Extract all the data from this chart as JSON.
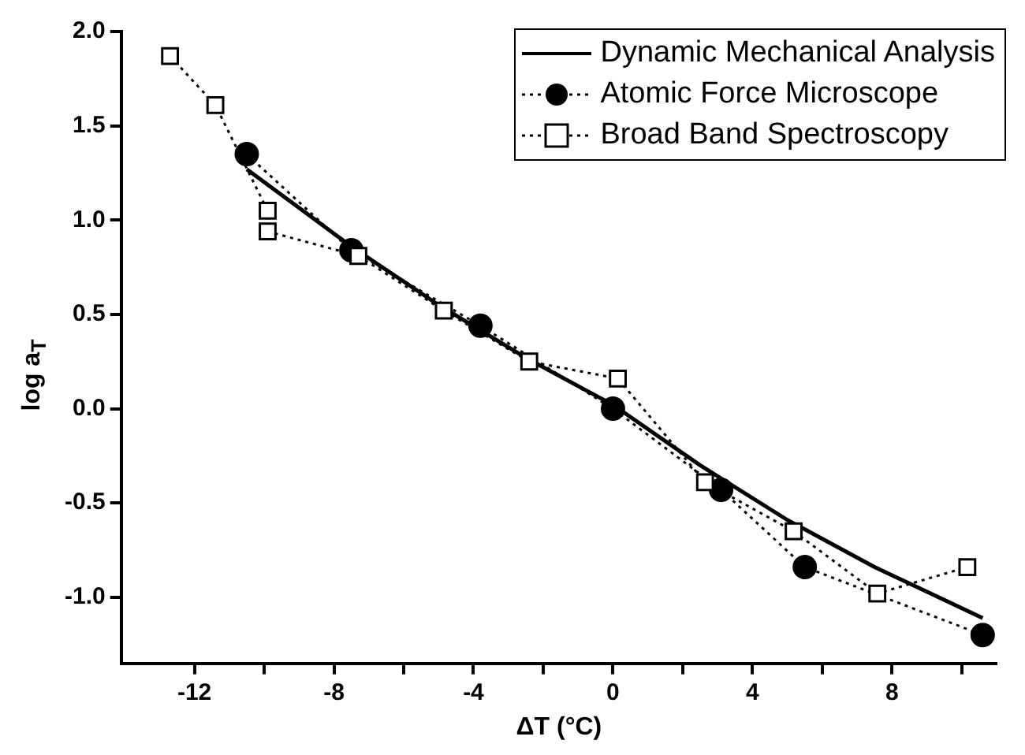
{
  "chart_data": {
    "type": "line",
    "xlabel": "ΔT (°C)",
    "ylabel": "log a$_{T}$",
    "xlim": [
      -14.1,
      11
    ],
    "xticks": [
      -12,
      {
        "value": -10,
        "label": null
      },
      -8,
      {
        "value": -6,
        "label": null
      },
      -4,
      {
        "value": -2,
        "label": null
      },
      0,
      {
        "value": 2,
        "label": null
      },
      4,
      {
        "value": 6,
        "label": null
      },
      8,
      {
        "value": 10,
        "label": null
      }
    ],
    "ylim": [
      -1.35,
      2.0
    ],
    "yticks": [
      {
        "value": -1.0,
        "label": "-1.0"
      },
      {
        "value": -0.5,
        "label": "-0.5"
      },
      {
        "value": 0.0,
        "label": "0.0"
      },
      {
        "value": 0.5,
        "label": "0.5"
      },
      {
        "value": 1.0,
        "label": "1.0"
      },
      {
        "value": 1.5,
        "label": "1.5"
      },
      {
        "value": 2.0,
        "label": "2.0"
      }
    ],
    "grid": false,
    "legend": "top right",
    "series": [
      {
        "name": "Dynamic Mechanical Analysis",
        "color": "#000000",
        "marker": "none",
        "line_style": "solid",
        "x": [
          -10.5,
          -7.5,
          -5,
          -2.5,
          0,
          2.5,
          5,
          7.5,
          10.6
        ],
        "values": [
          1.27,
          0.86,
          0.55,
          0.27,
          0.02,
          -0.3,
          -0.59,
          -0.84,
          -1.11
        ]
      },
      {
        "name": "Atomic Force Microscope",
        "color": "#000000",
        "marker": "circle",
        "line_style": "dotted",
        "x": [
          -10.5,
          -7.5,
          -3.8,
          0,
          3.1,
          5.5,
          10.6
        ],
        "values": [
          1.35,
          0.84,
          0.44,
          0.0,
          -0.43,
          -0.84,
          -1.2
        ]
      },
      {
        "name": "Broad Band Spectroscopy",
        "color": "#000000",
        "marker": "square",
        "line_style": "dotted",
        "x": [
          -12.7,
          -11.4,
          -9.9,
          -9.9,
          -7.3,
          -4.85,
          -2.4,
          0.14,
          2.64,
          5.18,
          7.58,
          10.16
        ],
        "values": [
          1.87,
          1.61,
          1.05,
          0.94,
          0.81,
          0.52,
          0.25,
          0.16,
          -0.39,
          -0.65,
          -0.98,
          -0.84
        ]
      }
    ]
  }
}
